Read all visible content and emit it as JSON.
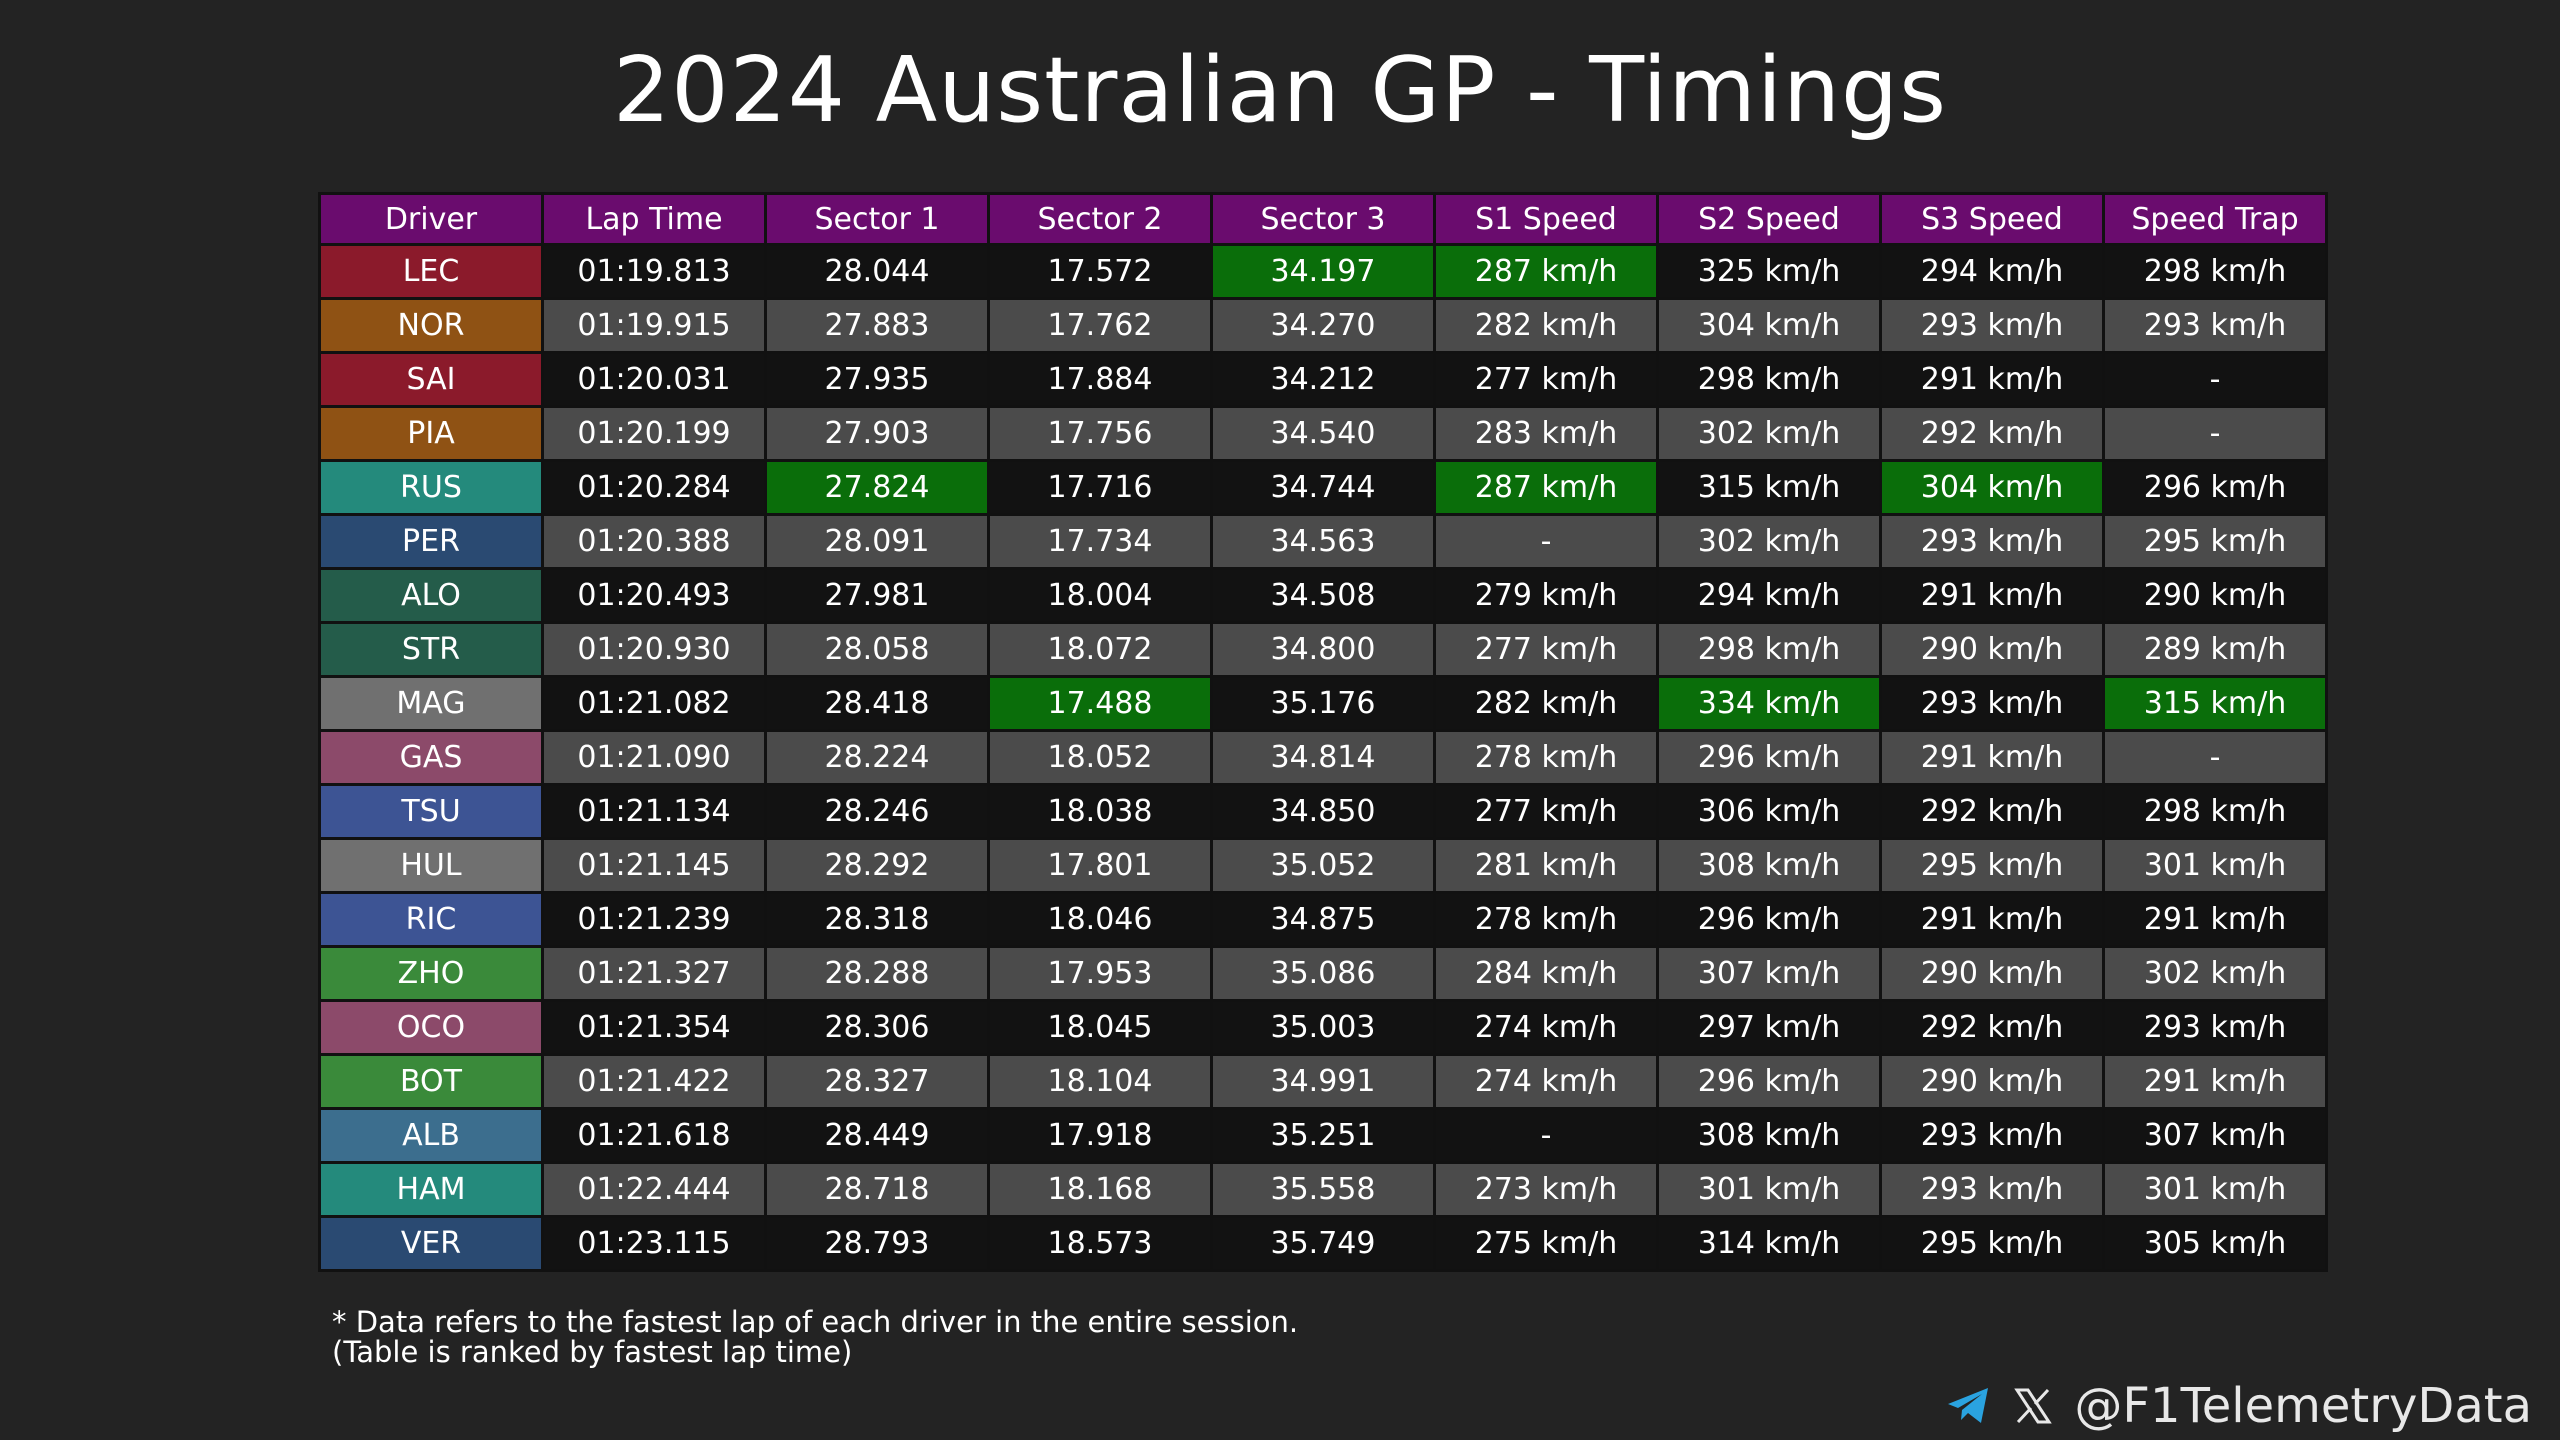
{
  "title": "2024 Australian GP - Timings",
  "watermark": "@F1TelemetryData",
  "footnote": {
    "line1": "* Data refers to the fastest lap of each driver in the entire session.",
    "line2": "(Table is ranked by fastest lap time)"
  },
  "brand": {
    "handle": "@F1TelemetryData",
    "icons": [
      "telegram-icon",
      "x-icon"
    ]
  },
  "colors": {
    "header_bg": "#6a0c6e",
    "best_bg": "#0a6e0a",
    "row_dark": "#121212",
    "row_light": "#4b4b4b",
    "page_bg": "#232323"
  },
  "chart_data": {
    "type": "table",
    "columns": [
      "Driver",
      "Lap Time",
      "Sector 1",
      "Sector 2",
      "Sector 3",
      "S1 Speed",
      "S2 Speed",
      "S3 Speed",
      "Speed Trap"
    ],
    "rows": [
      {
        "driver": "LEC",
        "color": "#8b1a2b",
        "cells": [
          "01:19.813",
          "28.044",
          "17.572",
          "34.197",
          "287 km/h",
          "325 km/h",
          "294 km/h",
          "298 km/h"
        ],
        "best": [
          3,
          4
        ]
      },
      {
        "driver": "NOR",
        "color": "#8f5214",
        "cells": [
          "01:19.915",
          "27.883",
          "17.762",
          "34.270",
          "282 km/h",
          "304 km/h",
          "293 km/h",
          "293 km/h"
        ],
        "best": []
      },
      {
        "driver": "SAI",
        "color": "#8b1a2b",
        "cells": [
          "01:20.031",
          "27.935",
          "17.884",
          "34.212",
          "277 km/h",
          "298 km/h",
          "291 km/h",
          "-"
        ],
        "best": []
      },
      {
        "driver": "PIA",
        "color": "#8f5214",
        "cells": [
          "01:20.199",
          "27.903",
          "17.756",
          "34.540",
          "283 km/h",
          "302 km/h",
          "292 km/h",
          "-"
        ],
        "best": []
      },
      {
        "driver": "RUS",
        "color": "#248a7c",
        "cells": [
          "01:20.284",
          "27.824",
          "17.716",
          "34.744",
          "287 km/h",
          "315 km/h",
          "304 km/h",
          "296 km/h"
        ],
        "best": [
          1,
          4,
          6
        ]
      },
      {
        "driver": "PER",
        "color": "#2a4a72",
        "cells": [
          "01:20.388",
          "28.091",
          "17.734",
          "34.563",
          "-",
          "302 km/h",
          "293 km/h",
          "295 km/h"
        ],
        "best": []
      },
      {
        "driver": "ALO",
        "color": "#245c4a",
        "cells": [
          "01:20.493",
          "27.981",
          "18.004",
          "34.508",
          "279 km/h",
          "294 km/h",
          "291 km/h",
          "290 km/h"
        ],
        "best": []
      },
      {
        "driver": "STR",
        "color": "#245c4a",
        "cells": [
          "01:20.930",
          "28.058",
          "18.072",
          "34.800",
          "277 km/h",
          "298 km/h",
          "290 km/h",
          "289 km/h"
        ],
        "best": []
      },
      {
        "driver": "MAG",
        "color": "#707070",
        "cells": [
          "01:21.082",
          "28.418",
          "17.488",
          "35.176",
          "282 km/h",
          "334 km/h",
          "293 km/h",
          "315 km/h"
        ],
        "best": [
          2,
          5,
          7
        ]
      },
      {
        "driver": "GAS",
        "color": "#8c4a6a",
        "cells": [
          "01:21.090",
          "28.224",
          "18.052",
          "34.814",
          "278 km/h",
          "296 km/h",
          "291 km/h",
          "-"
        ],
        "best": []
      },
      {
        "driver": "TSU",
        "color": "#3d5494",
        "cells": [
          "01:21.134",
          "28.246",
          "18.038",
          "34.850",
          "277 km/h",
          "306 km/h",
          "292 km/h",
          "298 km/h"
        ],
        "best": []
      },
      {
        "driver": "HUL",
        "color": "#707070",
        "cells": [
          "01:21.145",
          "28.292",
          "17.801",
          "35.052",
          "281 km/h",
          "308 km/h",
          "295 km/h",
          "301 km/h"
        ],
        "best": []
      },
      {
        "driver": "RIC",
        "color": "#3d5494",
        "cells": [
          "01:21.239",
          "28.318",
          "18.046",
          "34.875",
          "278 km/h",
          "296 km/h",
          "291 km/h",
          "291 km/h"
        ],
        "best": []
      },
      {
        "driver": "ZHO",
        "color": "#3a8a3a",
        "cells": [
          "01:21.327",
          "28.288",
          "17.953",
          "35.086",
          "284 km/h",
          "307 km/h",
          "290 km/h",
          "302 km/h"
        ],
        "best": []
      },
      {
        "driver": "OCO",
        "color": "#8c4a6a",
        "cells": [
          "01:21.354",
          "28.306",
          "18.045",
          "35.003",
          "274 km/h",
          "297 km/h",
          "292 km/h",
          "293 km/h"
        ],
        "best": []
      },
      {
        "driver": "BOT",
        "color": "#3a8a3a",
        "cells": [
          "01:21.422",
          "28.327",
          "18.104",
          "34.991",
          "274 km/h",
          "296 km/h",
          "290 km/h",
          "291 km/h"
        ],
        "best": []
      },
      {
        "driver": "ALB",
        "color": "#3c6e8e",
        "cells": [
          "01:21.618",
          "28.449",
          "17.918",
          "35.251",
          "-",
          "308 km/h",
          "293 km/h",
          "307 km/h"
        ],
        "best": []
      },
      {
        "driver": "HAM",
        "color": "#248a7c",
        "cells": [
          "01:22.444",
          "28.718",
          "18.168",
          "35.558",
          "273 km/h",
          "301 km/h",
          "293 km/h",
          "301 km/h"
        ],
        "best": []
      },
      {
        "driver": "VER",
        "color": "#2a4a72",
        "cells": [
          "01:23.115",
          "28.793",
          "18.573",
          "35.749",
          "275 km/h",
          "314 km/h",
          "295 km/h",
          "305 km/h"
        ],
        "best": []
      }
    ]
  }
}
